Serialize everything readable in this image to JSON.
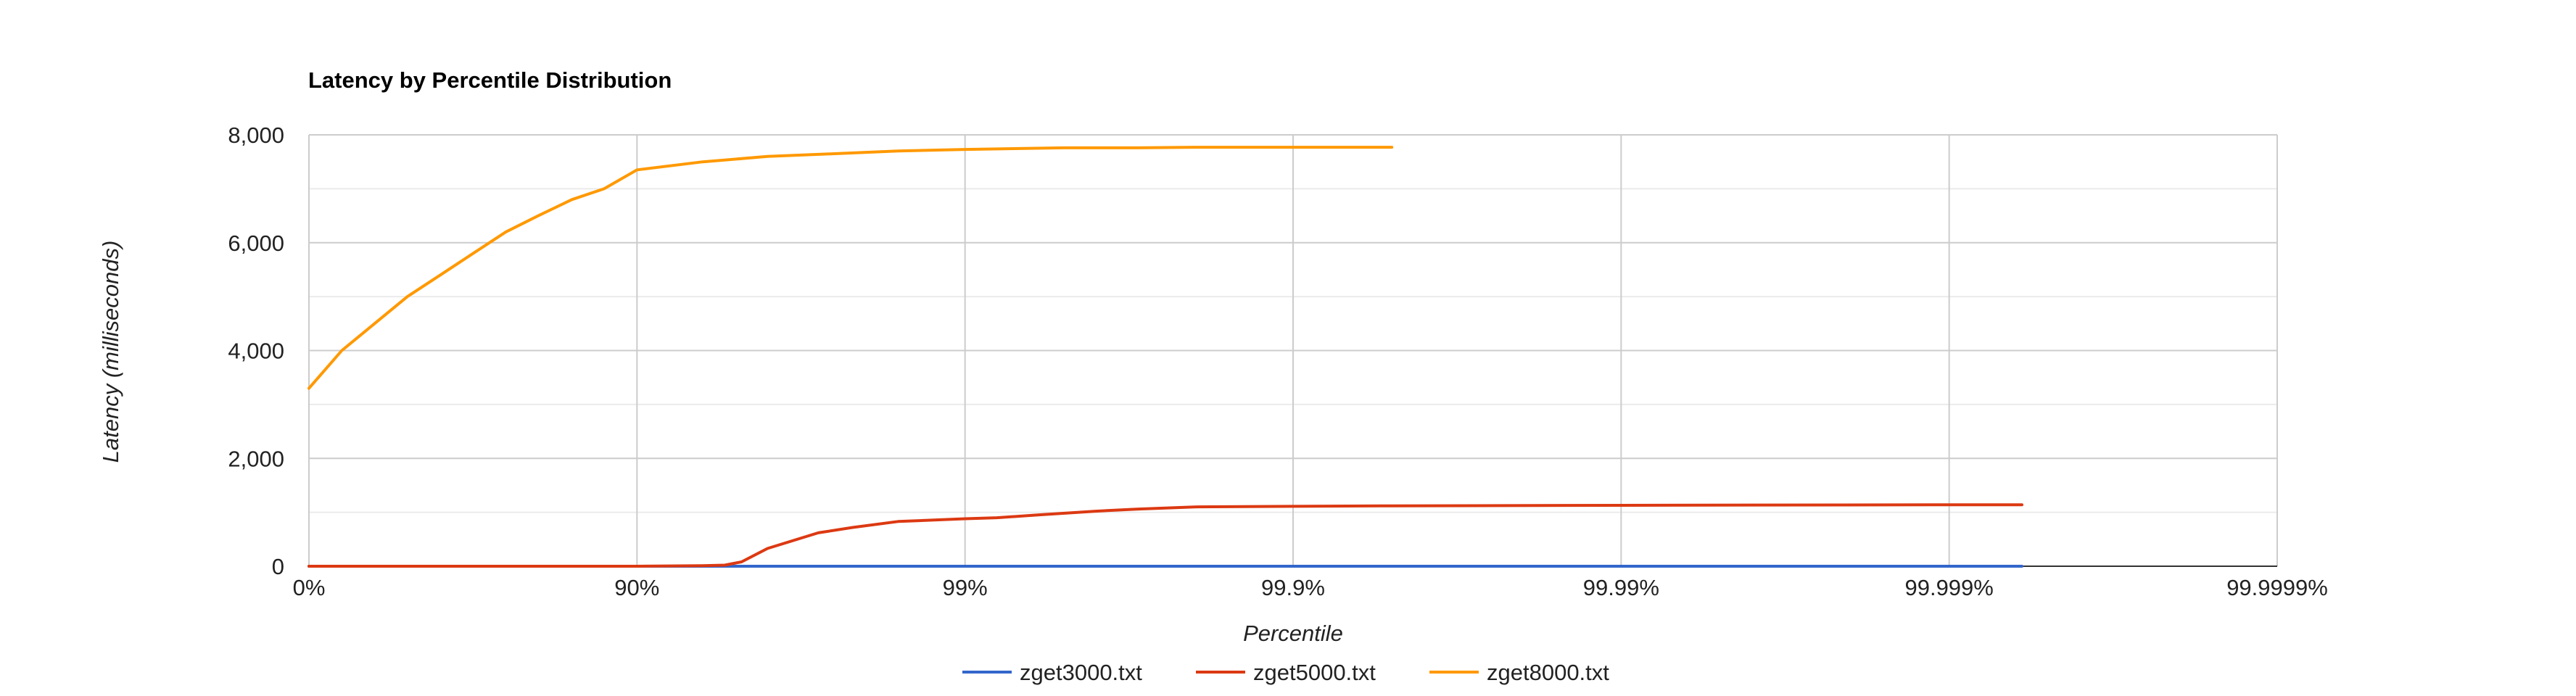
{
  "chart_data": {
    "type": "line",
    "title": "Latency by Percentile Distribution",
    "xlabel": "Percentile",
    "ylabel": "Latency (milliseconds)",
    "x_scale": "log-inverse-percentile",
    "x_tick_labels": [
      "0%",
      "90%",
      "99%",
      "99.9%",
      "99.99%",
      "99.999%",
      "99.9999%"
    ],
    "y_tick_labels": [
      "0",
      "2,000",
      "4,000",
      "6,000",
      "8,000"
    ],
    "ylim": [
      0,
      8000
    ],
    "grid": true,
    "legend_position": "bottom",
    "series": [
      {
        "name": "zget3000.txt",
        "color": "#3366cc",
        "x": [
          "0%",
          "90%",
          "99%",
          "99.9%",
          "99.99%",
          "99.999%",
          "99.9994%"
        ],
        "y": [
          0,
          0,
          0,
          0,
          0,
          0,
          0
        ]
      },
      {
        "name": "zget5000.txt",
        "color": "#dc3912",
        "x": [
          "0%",
          "68.4%",
          "80%",
          "90%",
          "93.7%",
          "94.6%",
          "95.2%",
          "96%",
          "97.2%",
          "97.8%",
          "98.4%",
          "99%",
          "99.2%",
          "99.4%",
          "99.6%",
          "99.7%",
          "99.8%",
          "99.9%",
          "99.95%",
          "99.99%",
          "99.999%",
          "99.9994%"
        ],
        "y": [
          0,
          0,
          0,
          0,
          10,
          20,
          80,
          330,
          620,
          720,
          830,
          880,
          900,
          950,
          1020,
          1060,
          1100,
          1110,
          1120,
          1130,
          1140,
          1140
        ],
        "x_values": [
          0,
          68.4,
          80,
          90,
          93.7,
          94.6,
          95.2,
          96,
          97.2,
          97.8,
          98.4,
          99,
          99.2,
          99.4,
          99.6,
          99.7,
          99.8,
          99.9,
          99.95,
          99.99,
          99.999,
          99.9994
        ]
      },
      {
        "name": "zget8000.txt",
        "color": "#ff9900",
        "x": [
          "0%",
          "20.6%",
          "36.9%",
          "49.9%",
          "60.2%",
          "68.4%",
          "74.9%",
          "80%",
          "84.2%",
          "87.4%",
          "90%",
          "93.7%",
          "96%",
          "97.5%",
          "98.4%",
          "99%",
          "99.5%",
          "99.7%",
          "99.8%",
          "99.9%",
          "99.95%"
        ],
        "y": [
          3300,
          4000,
          4500,
          5000,
          5400,
          5800,
          6200,
          6500,
          6800,
          7000,
          7350,
          7500,
          7600,
          7650,
          7700,
          7730,
          7760,
          7760,
          7770,
          7770,
          7770
        ],
        "x_values": [
          0,
          20.6,
          36.9,
          49.9,
          60.2,
          68.4,
          74.9,
          80,
          84.2,
          87.4,
          90,
          93.7,
          96,
          97.5,
          98.4,
          99,
          99.5,
          99.7,
          99.8,
          99.9,
          99.95
        ]
      }
    ]
  }
}
